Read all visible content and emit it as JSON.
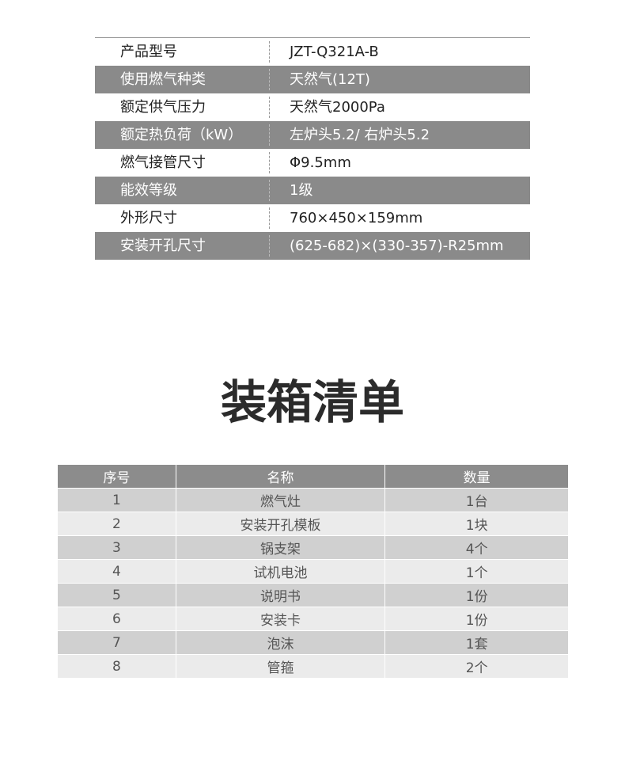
{
  "specs": {
    "rows": [
      [
        "产品型号",
        "JZT-Q321A-B"
      ],
      [
        "使用燃气种类",
        "天然气(12T)"
      ],
      [
        "额定供气压力",
        "天然气2000Pa"
      ],
      [
        "额定热负荷（kW）",
        "左炉头5.2/ 右炉头5.2"
      ],
      [
        "燃气接管尺寸",
        "Φ9.5mm"
      ],
      [
        "能效等级",
        "1级"
      ],
      [
        "外形尺寸",
        "760×450×159mm"
      ],
      [
        "安装开孔尺寸",
        "(625-682)×(330-357)-R25mm"
      ]
    ]
  },
  "packing": {
    "title": "装箱清单",
    "header": [
      "序号",
      "名称",
      "数量"
    ],
    "rows": [
      [
        "1",
        "燃气灶",
        "1台"
      ],
      [
        "2",
        "安装开孔模板",
        "1块"
      ],
      [
        "3",
        "锅支架",
        "4个"
      ],
      [
        "4",
        "试机电池",
        "1个"
      ],
      [
        "5",
        "说明书",
        "1份"
      ],
      [
        "6",
        "安装卡",
        "1份"
      ],
      [
        "7",
        "泡沫",
        "1套"
      ],
      [
        "8",
        "管箍",
        "2个"
      ]
    ]
  }
}
